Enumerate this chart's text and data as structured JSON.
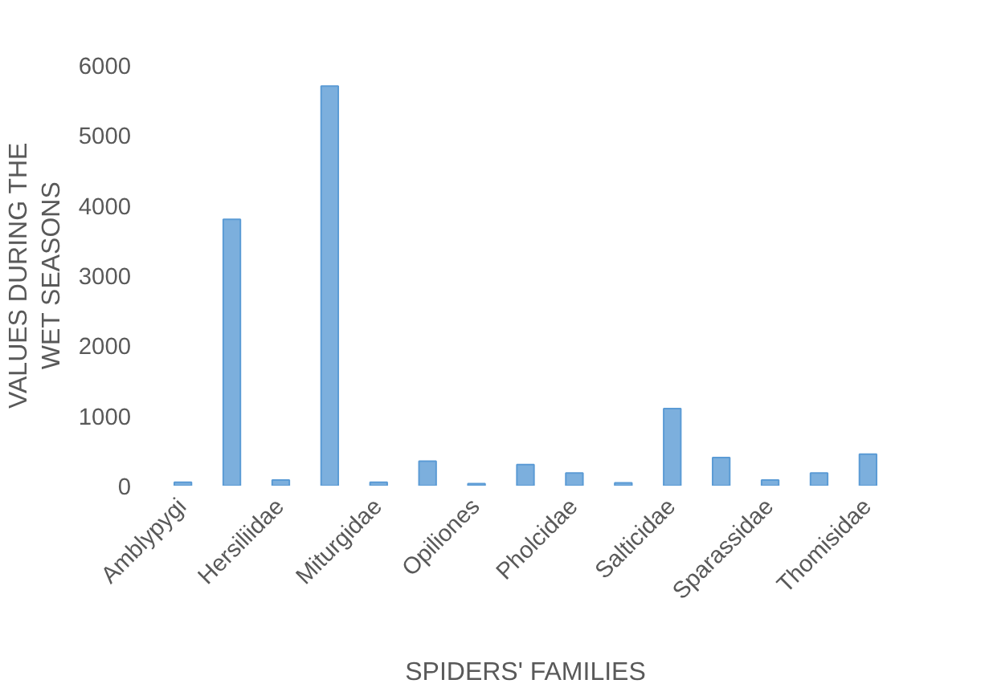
{
  "chart_data": {
    "type": "bar",
    "xlabel": "SPIDERS' FAMILIES",
    "ylabel": "VALUES DURING THE WET SEASONS",
    "categories": [
      "Amblypygi",
      null,
      "Hersiliidae",
      null,
      "Miturgidae",
      null,
      "Opiliones",
      null,
      "Pholcidae",
      null,
      "Salticidae",
      null,
      "Sparassidae",
      null,
      "Thomisidae"
    ],
    "values": [
      50,
      3800,
      80,
      5700,
      50,
      350,
      30,
      300,
      180,
      40,
      1100,
      400,
      80,
      180,
      450
    ],
    "color": "#5b9bd5",
    "ylim": [
      0,
      6000
    ],
    "yticks": [
      0,
      1000,
      2000,
      3000,
      4000,
      5000,
      6000
    ],
    "grid": false
  }
}
